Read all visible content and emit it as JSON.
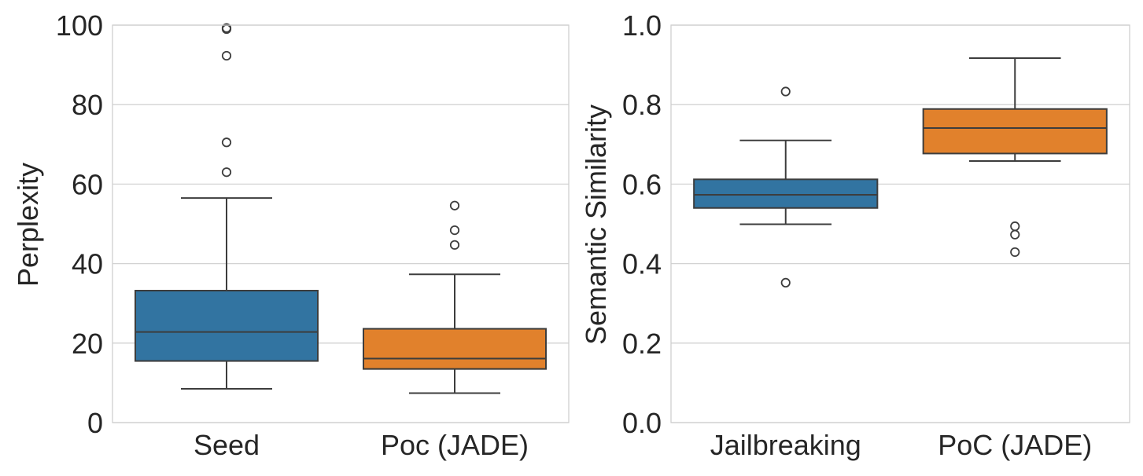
{
  "chart_data": [
    {
      "type": "box",
      "title": "",
      "xlabel": "",
      "ylabel": "Perplexity",
      "ylim": [
        0,
        100
      ],
      "yticks": [
        0,
        20,
        40,
        60,
        80,
        100
      ],
      "ytick_labels": [
        "0",
        "20",
        "40",
        "60",
        "80",
        "100"
      ],
      "grid": true,
      "categories": [
        "Seed",
        "Poc (JADE)"
      ],
      "series": [
        {
          "name": "Seed",
          "color": "#3274a1",
          "whisker_low": 8.5,
          "q1": 15.5,
          "median": 22.8,
          "q3": 33.2,
          "whisker_high": 56.5,
          "outliers": [
            63,
            70.5,
            92.3,
            99,
            99.3
          ]
        },
        {
          "name": "Poc (JADE)",
          "color": "#e1812c",
          "whisker_low": 7.4,
          "q1": 13.5,
          "median": 16.1,
          "q3": 23.6,
          "whisker_high": 37.3,
          "outliers": [
            44.7,
            48.4,
            54.6
          ]
        }
      ]
    },
    {
      "type": "box",
      "title": "",
      "xlabel": "",
      "ylabel": "Semantic Similarity",
      "ylim": [
        0,
        1.0
      ],
      "yticks": [
        0,
        0.2,
        0.4,
        0.6,
        0.8,
        1.0
      ],
      "ytick_labels": [
        "0.0",
        "0.2",
        "0.4",
        "0.6",
        "0.8",
        "1.0"
      ],
      "grid": true,
      "categories": [
        "Jailbreaking",
        "PoC  (JADE)"
      ],
      "series": [
        {
          "name": "Jailbreaking",
          "color": "#3274a1",
          "whisker_low": 0.499,
          "q1": 0.54,
          "median": 0.573,
          "q3": 0.612,
          "whisker_high": 0.71,
          "outliers": [
            0.352,
            0.833
          ]
        },
        {
          "name": "PoC  (JADE)",
          "color": "#e1812c",
          "whisker_low": 0.658,
          "q1": 0.677,
          "median": 0.741,
          "q3": 0.789,
          "whisker_high": 0.917,
          "outliers": [
            0.429,
            0.473,
            0.494
          ]
        }
      ]
    }
  ]
}
